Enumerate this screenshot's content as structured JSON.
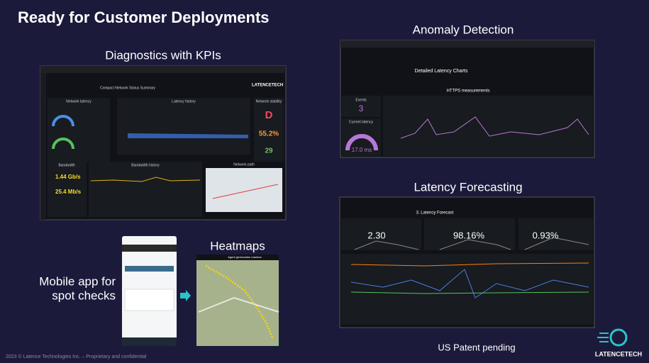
{
  "slide": {
    "title": "Ready for Customer Deployments",
    "patent": "US Patent pending",
    "logo": "LATENCETECH",
    "footer": "2023 © Latence Technologies Inc. – Proprietary and confidential"
  },
  "diagnostics": {
    "label": "Diagnostics with KPIs",
    "header": "Compact Network Status Summary",
    "latency_panel": "Network latency",
    "history_panel": "Latency history",
    "stability_panel": "Network stability",
    "stability_grade": "D",
    "stability_pct": "55.2%",
    "stability_count": "29",
    "bandwidth_panel": "Bandwidth",
    "bandwidth_down": "1.44 Gb/s",
    "bandwidth_up": "25.4 Mb/s",
    "bw_history_panel": "Bandwidth history",
    "path_panel": "Network path",
    "logo": "LATENCETECH"
  },
  "anomaly": {
    "label": "Anomaly Detection",
    "panel_title": "Detailed Latency Charts",
    "section": "HTTPS measurements",
    "events_label": "Events",
    "events": "3",
    "current_label": "Current latency",
    "current": "17.0 ms"
  },
  "forecast": {
    "label": "Latency Forecasting",
    "panel_title": "3. Latency Forecast",
    "kpis": [
      "2.30",
      "98.16%",
      "0.93%"
    ]
  },
  "mobile": {
    "label_line1": "Mobile app for",
    "label_line2": "spot checks"
  },
  "heatmaps": {
    "label": "Heatmaps",
    "map_title": "Agent geolocation markers"
  }
}
